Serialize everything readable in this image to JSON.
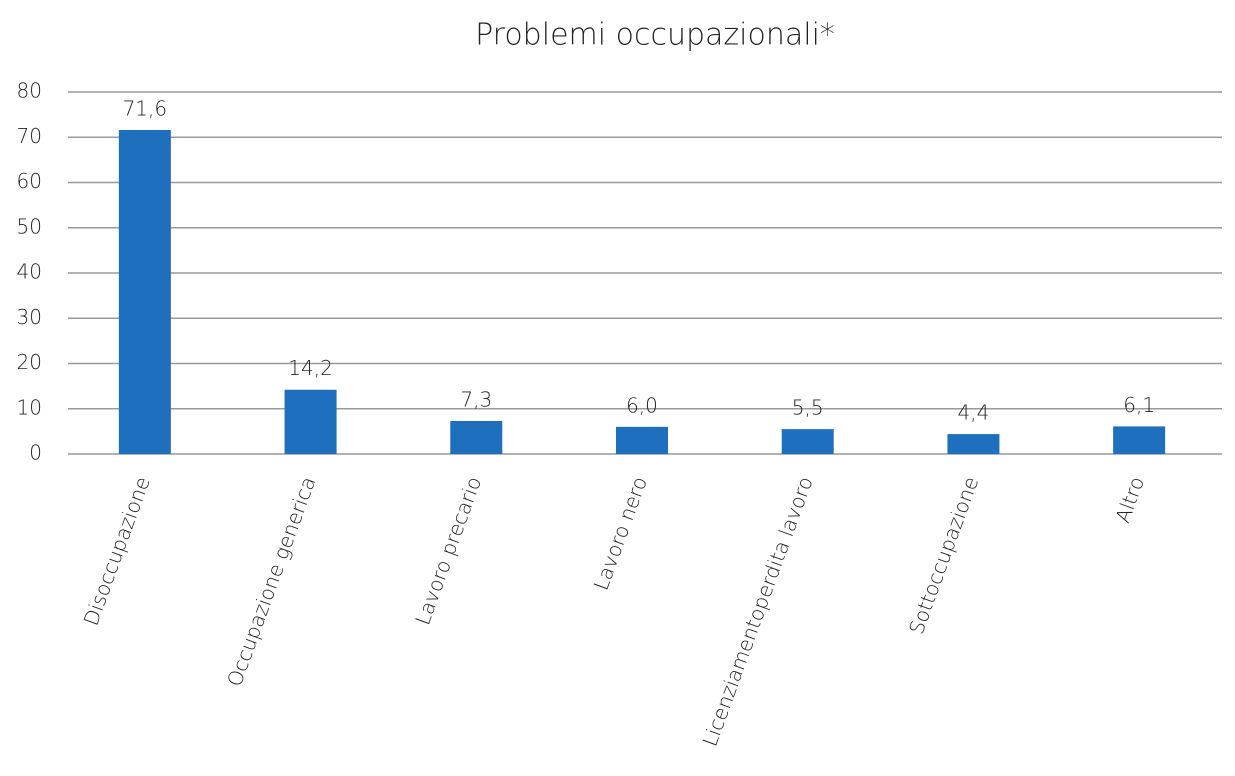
{
  "chart_data": {
    "type": "bar",
    "title": "Problemi occupazionali*",
    "categories": [
      "Disoccupazione",
      "Occupazione generica",
      "Lavoro precario",
      "Lavoro nero",
      "Licenziamentoperdita lavoro",
      "Sottoccupazione",
      "Altro"
    ],
    "values": [
      71.6,
      14.2,
      7.3,
      6.0,
      5.5,
      4.4,
      6.1
    ],
    "value_labels": [
      "71,6",
      "14,2",
      "7,3",
      "6,0",
      "5,5",
      "4,4",
      "6,1"
    ],
    "color": "#1f6fbf",
    "ylim": [
      0,
      80
    ],
    "yticks": [
      0,
      10,
      20,
      30,
      40,
      50,
      60,
      70,
      80
    ],
    "grid": true
  }
}
